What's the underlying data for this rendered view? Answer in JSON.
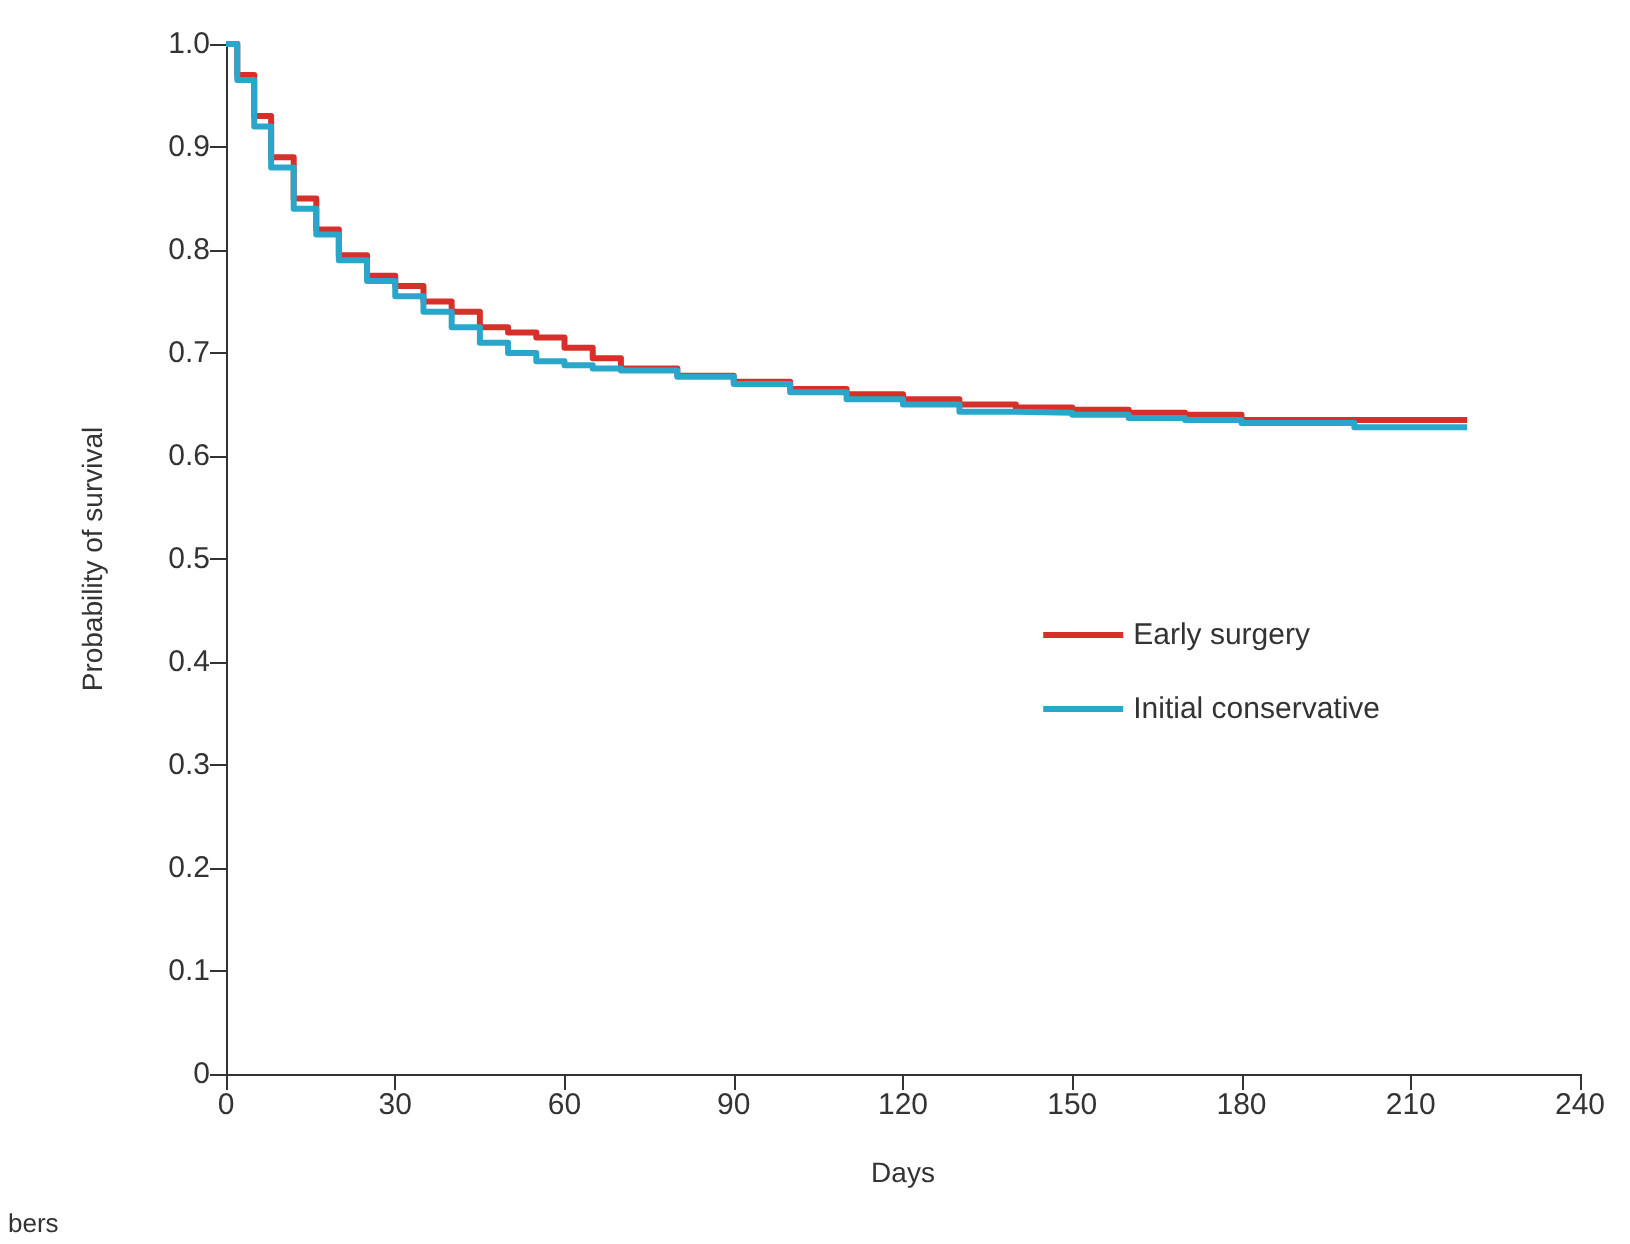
{
  "chart_data": {
    "type": "step",
    "xlabel": "Days",
    "ylabel": "Probability of survival",
    "annotations": [
      "bers"
    ],
    "xlim": [
      0,
      240
    ],
    "xticks": [
      0,
      30,
      60,
      90,
      120,
      150,
      180,
      210,
      240
    ],
    "ylim": [
      0,
      1
    ],
    "yticks": [
      0,
      0.1,
      0.2,
      0.3,
      0.4,
      0.5,
      0.6,
      0.7,
      0.8,
      0.9,
      {
        "value": 1,
        "label": "1.0"
      }
    ],
    "grid": false,
    "legend": "right",
    "marker": "none",
    "line_style": "solid",
    "x": [
      0,
      2,
      5,
      8,
      12,
      16,
      20,
      25,
      30,
      35,
      40,
      45,
      50,
      55,
      60,
      65,
      70,
      80,
      90,
      100,
      110,
      120,
      130,
      140,
      150,
      160,
      170,
      180,
      200,
      220
    ],
    "series": [
      {
        "name": "Early surgery",
        "color": "#d7302a",
        "values": [
          1.0,
          0.97,
          0.93,
          0.89,
          0.85,
          0.82,
          0.795,
          0.775,
          0.765,
          0.75,
          0.74,
          0.725,
          0.72,
          0.715,
          0.705,
          0.695,
          0.685,
          0.678,
          0.672,
          0.665,
          0.66,
          0.655,
          0.65,
          0.647,
          0.645,
          0.642,
          0.64,
          0.635,
          0.635,
          0.635
        ]
      },
      {
        "name": "Initial conservative",
        "color": "#2ba6cb",
        "values": [
          1.0,
          0.965,
          0.92,
          0.88,
          0.84,
          0.815,
          0.79,
          0.77,
          0.755,
          0.74,
          0.725,
          0.71,
          0.7,
          0.692,
          0.688,
          0.685,
          0.683,
          0.677,
          0.67,
          0.662,
          0.655,
          0.65,
          0.643,
          0.642,
          0.64,
          0.637,
          0.635,
          0.632,
          0.628,
          0.627
        ]
      }
    ]
  }
}
